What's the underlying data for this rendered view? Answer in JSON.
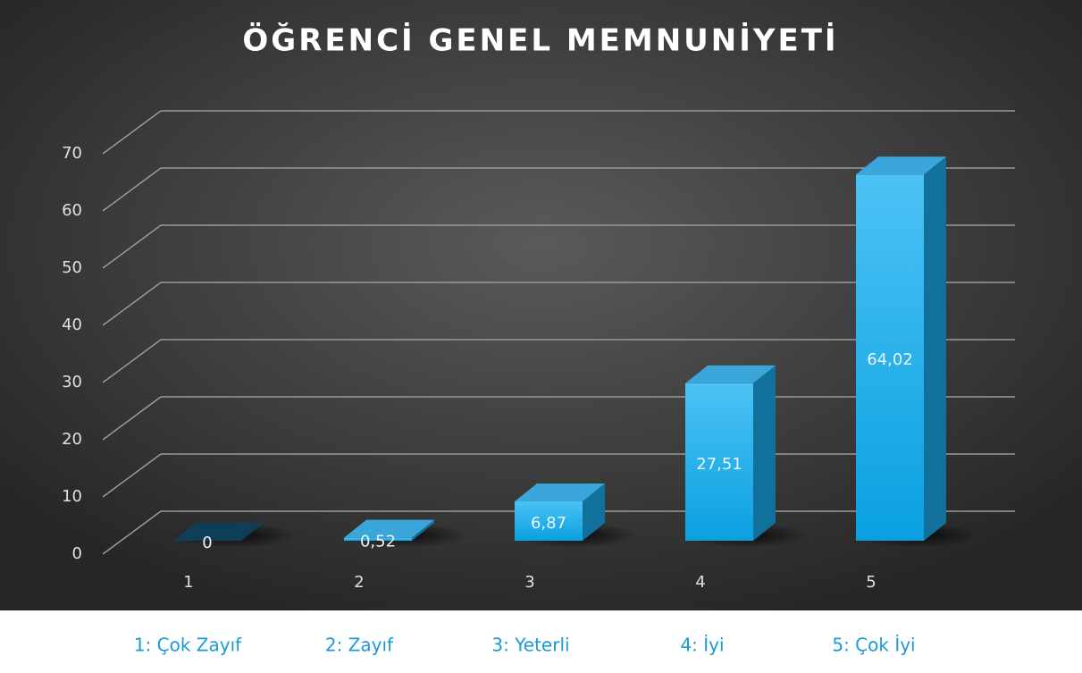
{
  "chart_data": {
    "type": "bar3d",
    "title": "ÖĞRENCİ GENEL MEMNUNİYETİ",
    "categories": [
      "1",
      "2",
      "3",
      "4",
      "5"
    ],
    "values": [
      0,
      0.52,
      6.87,
      27.51,
      64.02
    ],
    "value_labels": [
      "0",
      "0,52",
      "6,87",
      "27,51",
      "64,02"
    ],
    "color": "#1fb0ee",
    "ylim": [
      0,
      70
    ],
    "yticks": [
      0,
      10,
      20,
      30,
      40,
      50,
      60,
      70
    ],
    "grid": true,
    "category_notes": [
      "1: Çok Zayıf",
      "2: Zayıf",
      "3: Yeterli",
      "4: İyi",
      "5: Çok İyi"
    ]
  }
}
